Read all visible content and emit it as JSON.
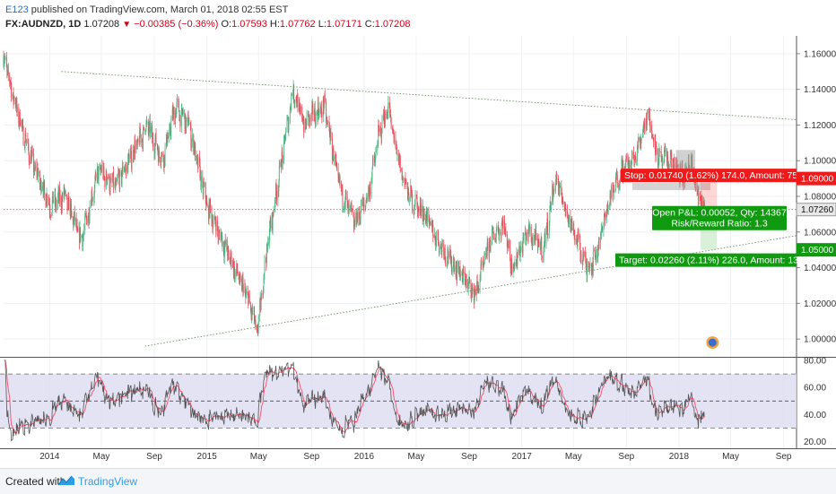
{
  "header": {
    "author": "E123",
    "published": "published on TradingView.com, March 01, 2018 02:55 EST",
    "symbol": "FX:AUDNZD, 1D",
    "last": "1.07208",
    "change": "−0.00385 (−0.36%)",
    "open_label": "O:",
    "open": "1.07593",
    "high_label": "H:",
    "high": "1.07762",
    "low_label": "L:",
    "low": "1.07171",
    "close_label": "C:",
    "close": "1.07208"
  },
  "footer": {
    "created_with": "Created with",
    "brand": "TradingView"
  },
  "annotations": {
    "stop": "Stop: 0.01740 (1.62%) 174.0, Amount: 75",
    "target": "Target: 0.02260 (2.11%) 226.0, Amount: 13",
    "pnl_line1": "Open P&L: 0.00052, Qty: 14367",
    "pnl_line2": "Risk/Reward Ratio: 1.3"
  },
  "price_tags": {
    "stop": "1.09000",
    "last": "1.07260",
    "target": "1.05000"
  },
  "colors": {
    "up": "#53b987",
    "down": "#eb4d5c",
    "stop": "#ff2020",
    "target": "#10a010",
    "rsi_main": "#555555",
    "rsi_signal": "#ff4a68",
    "rsi_band": "#dcdcf0"
  },
  "chart_data": {
    "type": "candlestick",
    "price": {
      "ylim": [
        0.99,
        1.17
      ],
      "yticks": [
        "1.00000",
        "1.02000",
        "1.04000",
        "1.06000",
        "1.08000",
        "1.10000",
        "1.12000",
        "1.14000",
        "1.16000"
      ],
      "approx_close_path": [
        {
          "t": "2013-09-16",
          "v": 1.158
        },
        {
          "t": "2013-10-15",
          "v": 1.13
        },
        {
          "t": "2013-11-20",
          "v": 1.1
        },
        {
          "t": "2014-01-02",
          "v": 1.075
        },
        {
          "t": "2014-02-05",
          "v": 1.08
        },
        {
          "t": "2014-03-15",
          "v": 1.055
        },
        {
          "t": "2014-04-25",
          "v": 1.095
        },
        {
          "t": "2014-06-01",
          "v": 1.085
        },
        {
          "t": "2014-07-15",
          "v": 1.105
        },
        {
          "t": "2014-08-15",
          "v": 1.12
        },
        {
          "t": "2014-09-20",
          "v": 1.1
        },
        {
          "t": "2014-10-20",
          "v": 1.13
        },
        {
          "t": "2014-11-20",
          "v": 1.12
        },
        {
          "t": "2015-01-01",
          "v": 1.075
        },
        {
          "t": "2015-02-15",
          "v": 1.05
        },
        {
          "t": "2015-04-10",
          "v": 1.02
        },
        {
          "t": "2015-04-28",
          "v": 1.003
        },
        {
          "t": "2015-05-20",
          "v": 1.05
        },
        {
          "t": "2015-06-20",
          "v": 1.095
        },
        {
          "t": "2015-07-20",
          "v": 1.14
        },
        {
          "t": "2015-08-15",
          "v": 1.12
        },
        {
          "t": "2015-09-01",
          "v": 1.125
        },
        {
          "t": "2015-10-01",
          "v": 1.13
        },
        {
          "t": "2015-11-05",
          "v": 1.085
        },
        {
          "t": "2015-12-10",
          "v": 1.065
        },
        {
          "t": "2016-01-10",
          "v": 1.08
        },
        {
          "t": "2016-02-05",
          "v": 1.115
        },
        {
          "t": "2016-02-26",
          "v": 1.13
        },
        {
          "t": "2016-03-20",
          "v": 1.1
        },
        {
          "t": "2016-04-15",
          "v": 1.08
        },
        {
          "t": "2016-05-20",
          "v": 1.07
        },
        {
          "t": "2016-06-20",
          "v": 1.055
        },
        {
          "t": "2016-08-01",
          "v": 1.04
        },
        {
          "t": "2016-09-15",
          "v": 1.025
        },
        {
          "t": "2016-10-20",
          "v": 1.055
        },
        {
          "t": "2016-11-20",
          "v": 1.065
        },
        {
          "t": "2016-12-10",
          "v": 1.04
        },
        {
          "t": "2017-01-15",
          "v": 1.06
        },
        {
          "t": "2017-02-20",
          "v": 1.05
        },
        {
          "t": "2017-03-20",
          "v": 1.09
        },
        {
          "t": "2017-04-10",
          "v": 1.075
        },
        {
          "t": "2017-05-10",
          "v": 1.055
        },
        {
          "t": "2017-06-01",
          "v": 1.04
        },
        {
          "t": "2017-06-20",
          "v": 1.045
        },
        {
          "t": "2017-07-20",
          "v": 1.075
        },
        {
          "t": "2017-08-20",
          "v": 1.095
        },
        {
          "t": "2017-09-20",
          "v": 1.1
        },
        {
          "t": "2017-10-20",
          "v": 1.127
        },
        {
          "t": "2017-11-15",
          "v": 1.1
        },
        {
          "t": "2017-12-15",
          "v": 1.1
        },
        {
          "t": "2018-01-10",
          "v": 1.09
        },
        {
          "t": "2018-01-30",
          "v": 1.1
        },
        {
          "t": "2018-02-10",
          "v": 1.082
        },
        {
          "t": "2018-03-01",
          "v": 1.072
        }
      ],
      "trendlines": [
        {
          "name": "upper",
          "points": [
            {
              "t": "2014-01-28",
              "v": 1.15
            },
            {
              "t": "2018-10-01",
              "v": 1.123
            }
          ]
        },
        {
          "name": "lower",
          "points": [
            {
              "t": "2014-08-10",
              "v": 0.996
            },
            {
              "t": "2018-10-01",
              "v": 1.058
            }
          ]
        }
      ],
      "position": {
        "entry": 1.0726,
        "stop": 1.09,
        "target": 1.05,
        "start": "2018-02-20",
        "end": "2018-03-30"
      },
      "last_price": 1.0726
    },
    "rsi": {
      "ylim": [
        15,
        82
      ],
      "yticks": [
        "20.00",
        "40.00",
        "60.00",
        "80.00"
      ],
      "levels": [
        70,
        50,
        30
      ]
    },
    "x": {
      "range": [
        "2013-09-16",
        "2018-10-01"
      ],
      "tick_labels": [
        {
          "t": "2014-01-01",
          "label": "2014"
        },
        {
          "t": "2014-05-01",
          "label": "May"
        },
        {
          "t": "2014-09-01",
          "label": "Sep"
        },
        {
          "t": "2015-01-01",
          "label": "2015"
        },
        {
          "t": "2015-05-01",
          "label": "May"
        },
        {
          "t": "2015-09-01",
          "label": "Sep"
        },
        {
          "t": "2016-01-01",
          "label": "2016"
        },
        {
          "t": "2016-05-01",
          "label": "May"
        },
        {
          "t": "2016-09-01",
          "label": "Sep"
        },
        {
          "t": "2017-01-01",
          "label": "2017"
        },
        {
          "t": "2017-05-01",
          "label": "May"
        },
        {
          "t": "2017-09-01",
          "label": "Sep"
        },
        {
          "t": "2018-01-01",
          "label": "2018"
        },
        {
          "t": "2018-05-01",
          "label": "May"
        },
        {
          "t": "2018-09-01",
          "label": "Sep"
        }
      ]
    }
  }
}
